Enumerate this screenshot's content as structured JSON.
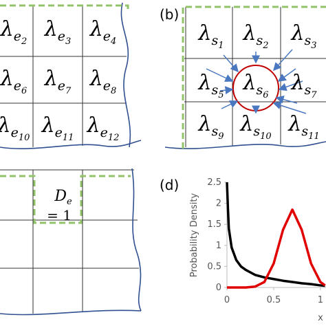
{
  "panel_a": {
    "symbol": "λ",
    "subscript": "e",
    "indices": [
      "2",
      "3",
      "4",
      "6",
      "7",
      "8",
      "10",
      "11",
      "12"
    ]
  },
  "panel_b": {
    "label": "(b)",
    "symbol": "λ",
    "subscript": "s",
    "indices": [
      "1",
      "2",
      "3",
      "5",
      "6",
      "7",
      "9",
      "10",
      "11"
    ]
  },
  "panel_c": {
    "symbol": "D",
    "subscript": "e",
    "value_text": "= 1"
  },
  "chart_data": {
    "type": "line",
    "label": "(d)",
    "ylabel": "Probability Density",
    "xlabel": "x",
    "x": [
      0,
      0.01,
      0.02,
      0.05,
      0.1,
      0.15,
      0.2,
      0.3,
      0.4,
      0.5,
      0.6,
      0.7,
      0.8,
      0.9,
      1.0,
      1.05
    ],
    "series": [
      {
        "color": "#000000",
        "values": [
          2.5,
          1.9,
          1.4,
          0.95,
          0.65,
          0.5,
          0.42,
          0.3,
          0.24,
          0.2,
          0.16,
          0.13,
          0.1,
          0.08,
          0.05,
          0.04
        ]
      },
      {
        "color": "#e00000",
        "values": [
          0,
          0,
          0,
          0,
          0,
          0,
          0,
          0.02,
          0.13,
          0.57,
          1.37,
          1.85,
          1.37,
          0.57,
          0.13,
          0.05
        ]
      }
    ],
    "xlim": [
      0,
      1.06
    ],
    "ylim": [
      0,
      2.5
    ],
    "xticks": [
      0,
      0.5,
      1
    ],
    "yticks": [
      0,
      0.5,
      1,
      1.5,
      2,
      2.5
    ]
  }
}
